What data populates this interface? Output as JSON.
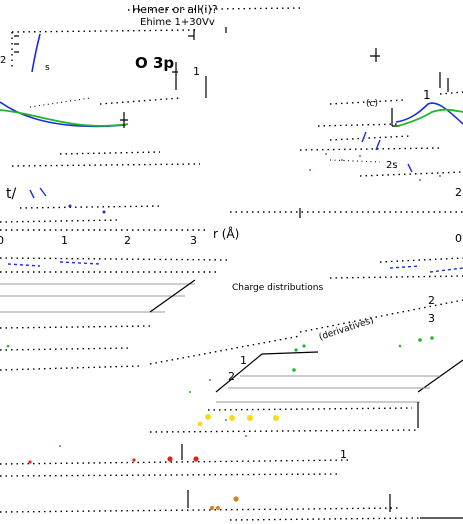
{
  "header": {
    "line1": "Hemer or all(i)?",
    "line2": "Ehime 1+30Vv"
  },
  "left_panel": {
    "orbital_label": "O 3p",
    "marker_s": "s",
    "marker_2": "2",
    "marker_1": "1",
    "x_ticks": [
      "0",
      "1",
      "2",
      "3"
    ],
    "x_axis_label": "r (Å)",
    "slash_label": "t/"
  },
  "right_panel": {
    "label_1": "1",
    "label_2s": "2s",
    "label_g": "(c)",
    "edge_2": "2",
    "edge_0": "0"
  },
  "lower_panel": {
    "top_caption": "Charge distributions",
    "diag_caption": "(derivatives)",
    "axis_2": "2",
    "axis_3": "3",
    "axis_1": "1",
    "axis_2b": "2",
    "axis_1b": "1"
  },
  "colors": {
    "blue": "#1b2fd1",
    "green": "#22b52a",
    "red": "#e0261a",
    "yellow": "#f2df18",
    "orange": "#e07a1c",
    "grey": "#9a9a9a"
  }
}
